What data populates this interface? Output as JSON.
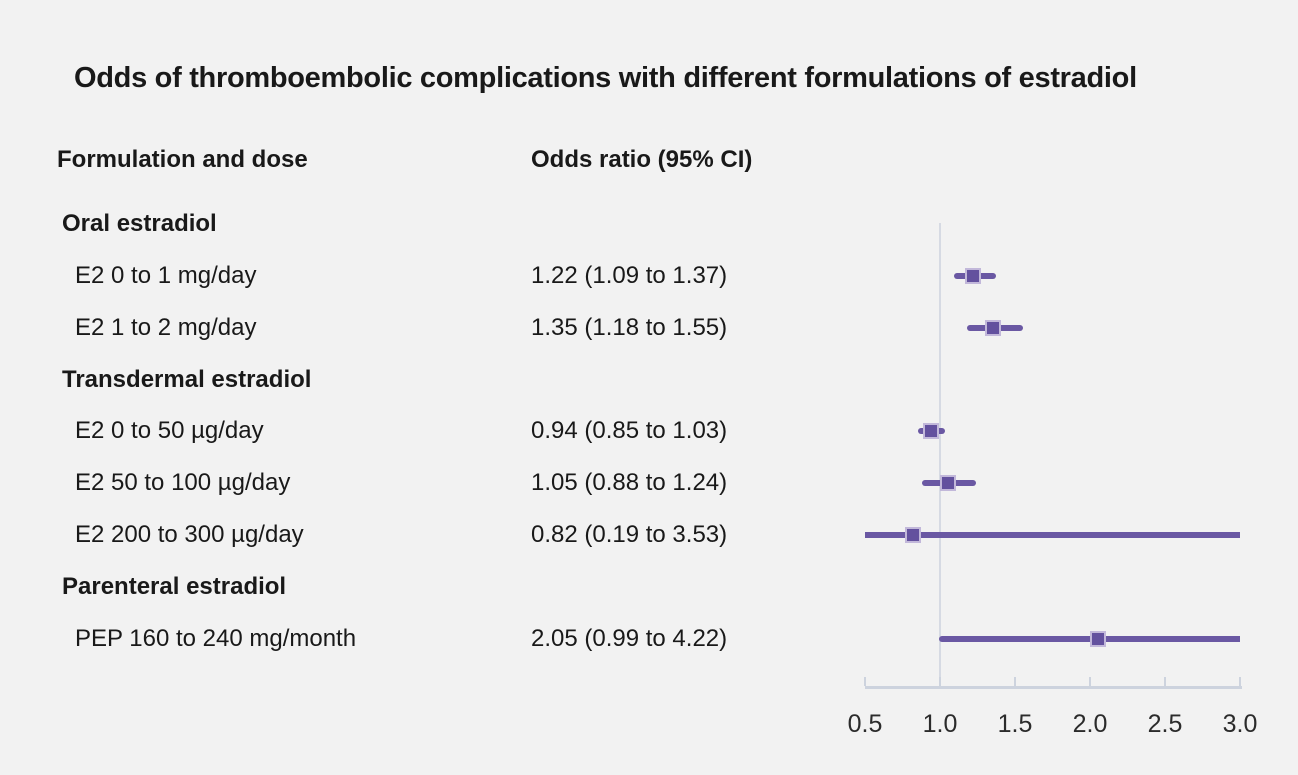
{
  "title": "Odds of thromboembolic complications with different formulations of estradiol",
  "columns": {
    "formulation": "Formulation and dose",
    "odds_ratio": "Odds ratio (95% CI)"
  },
  "colors": {
    "background": "#f2f2f2",
    "text": "#191919",
    "marker_purple": "#63519e",
    "marker_border": "#c2b8da",
    "ci_line_purple": "#6a58a3",
    "axis_gray": "#cdd3de",
    "reference_line_gray": "#d6dae3"
  },
  "chart_data": {
    "type": "scatter",
    "variant": "forest-plot",
    "title": "Odds of thromboembolic complications with different formulations of estradiol",
    "xlabel": "",
    "ylabel": "",
    "xlim": [
      0.5,
      3.0
    ],
    "x_tick_values": [
      0.5,
      1.0,
      1.5,
      2.0,
      2.5,
      3.0
    ],
    "x_tick_labels": [
      "0.5",
      "1.0",
      "1.5",
      "2.0",
      "2.5",
      "3.0"
    ],
    "reference_line_x": 1.0,
    "grid": false,
    "legend": false,
    "groups": [
      {
        "label": "Oral estradiol",
        "items": [
          {
            "label": "E2 0 to 1 mg/day",
            "or_text": "1.22 (1.09 to 1.37)",
            "or": 1.22,
            "ci_low": 1.09,
            "ci_high": 1.37
          },
          {
            "label": "E2 1 to 2 mg/day",
            "or_text": "1.35 (1.18 to 1.55)",
            "or": 1.35,
            "ci_low": 1.18,
            "ci_high": 1.55
          }
        ]
      },
      {
        "label": "Transdermal estradiol",
        "items": [
          {
            "label": "E2 0 to 50 µg/day",
            "or_text": "0.94 (0.85 to 1.03)",
            "or": 0.94,
            "ci_low": 0.85,
            "ci_high": 1.03
          },
          {
            "label": "E2 50 to 100 µg/day",
            "or_text": "1.05 (0.88 to 1.24)",
            "or": 1.05,
            "ci_low": 0.88,
            "ci_high": 1.24
          },
          {
            "label": "E2 200 to 300 µg/day",
            "or_text": "0.82 (0.19 to 3.53)",
            "or": 0.82,
            "ci_low": 0.19,
            "ci_high": 3.53
          }
        ]
      },
      {
        "label": "Parenteral estradiol",
        "items": [
          {
            "label": "PEP 160 to 240 mg/month",
            "or_text": "2.05 (0.99 to 4.22)",
            "or": 2.05,
            "ci_low": 0.99,
            "ci_high": 4.22
          }
        ]
      }
    ]
  }
}
